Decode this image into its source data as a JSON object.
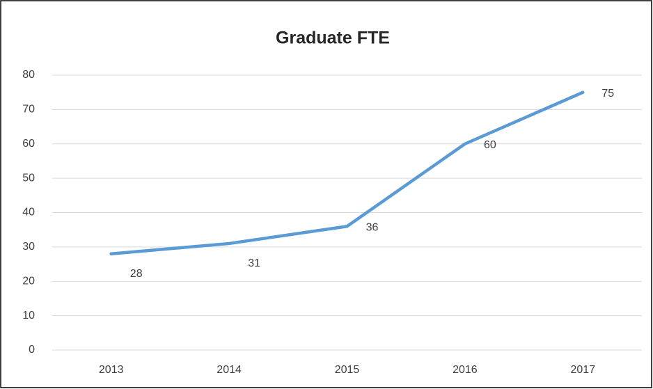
{
  "chart_data": {
    "type": "line",
    "title": "Graduate FTE",
    "categories": [
      "2013",
      "2014",
      "2015",
      "2016",
      "2017"
    ],
    "series": [
      {
        "name": "Graduate FTE",
        "color": "#5b9bd5",
        "values": [
          28,
          31,
          36,
          60,
          75
        ]
      }
    ],
    "ylim": [
      0,
      80
    ],
    "yticks": [
      0,
      10,
      20,
      30,
      40,
      50,
      60,
      70,
      80
    ],
    "grid": true
  }
}
